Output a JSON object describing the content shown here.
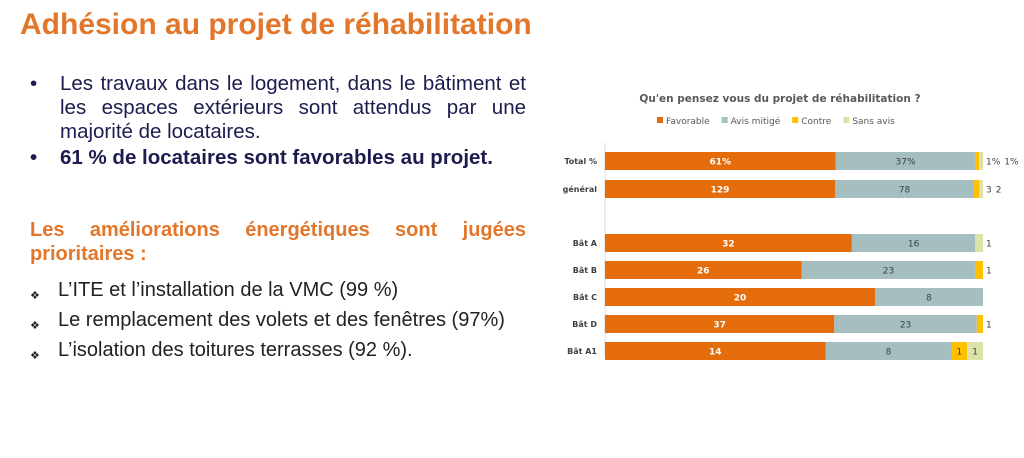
{
  "title": "Adhésion au projet de réhabilitation",
  "bullets": [
    {
      "text": "Les travaux dans le logement, dans le bâtiment et les espaces extérieurs sont attendus par une majorité de locataires.",
      "bold": false
    },
    {
      "text": "61 %  de locataires sont favorables au projet.",
      "bold": true
    }
  ],
  "subheading": "Les améliorations énergétiques sont jugées prioritaires :",
  "items": [
    "L’ITE et l’installation de la VMC (99 %)",
    "Le remplacement des volets et des fenêtres (97%)",
    "L’isolation des toitures terrasses (92 %)."
  ],
  "bullet_glyph": "•",
  "item_glyph": "❖",
  "chart_data": {
    "type": "bar",
    "stacked": "100%",
    "orientation": "horizontal",
    "title": "Qu'en pensez vous du projet de réhabilitation ?",
    "legend_position": "top",
    "categories": [
      "Total %",
      "Total général",
      "",
      "Bât A",
      "Bât B",
      "Bât C",
      "Bât D",
      "Bât A1"
    ],
    "series": [
      {
        "name": "Favorable",
        "color": "#E46C0A",
        "values": [
          61,
          129,
          null,
          32,
          26,
          20,
          37,
          14
        ],
        "labels": [
          "61%",
          "129",
          "",
          "32",
          "26",
          "20",
          "37",
          "14"
        ]
      },
      {
        "name": "Avis mitigé",
        "color": "#A5BEBF",
        "values": [
          37,
          78,
          null,
          16,
          23,
          8,
          23,
          8
        ],
        "labels": [
          "37%",
          "78",
          "",
          "16",
          "23",
          "8",
          "23",
          "8"
        ]
      },
      {
        "name": "Contre",
        "color": "#FFC000",
        "values": [
          1,
          3,
          null,
          0,
          1,
          0,
          1,
          1
        ],
        "labels": [
          "1%",
          "3",
          "",
          "",
          "1",
          "",
          "1",
          "1"
        ]
      },
      {
        "name": "Sans avis",
        "color": "#DDE3A8",
        "values": [
          1,
          2,
          null,
          1,
          0,
          0,
          0,
          1
        ],
        "labels": [
          "1%",
          "2",
          "",
          "1",
          "",
          "",
          "",
          "1"
        ]
      }
    ]
  }
}
